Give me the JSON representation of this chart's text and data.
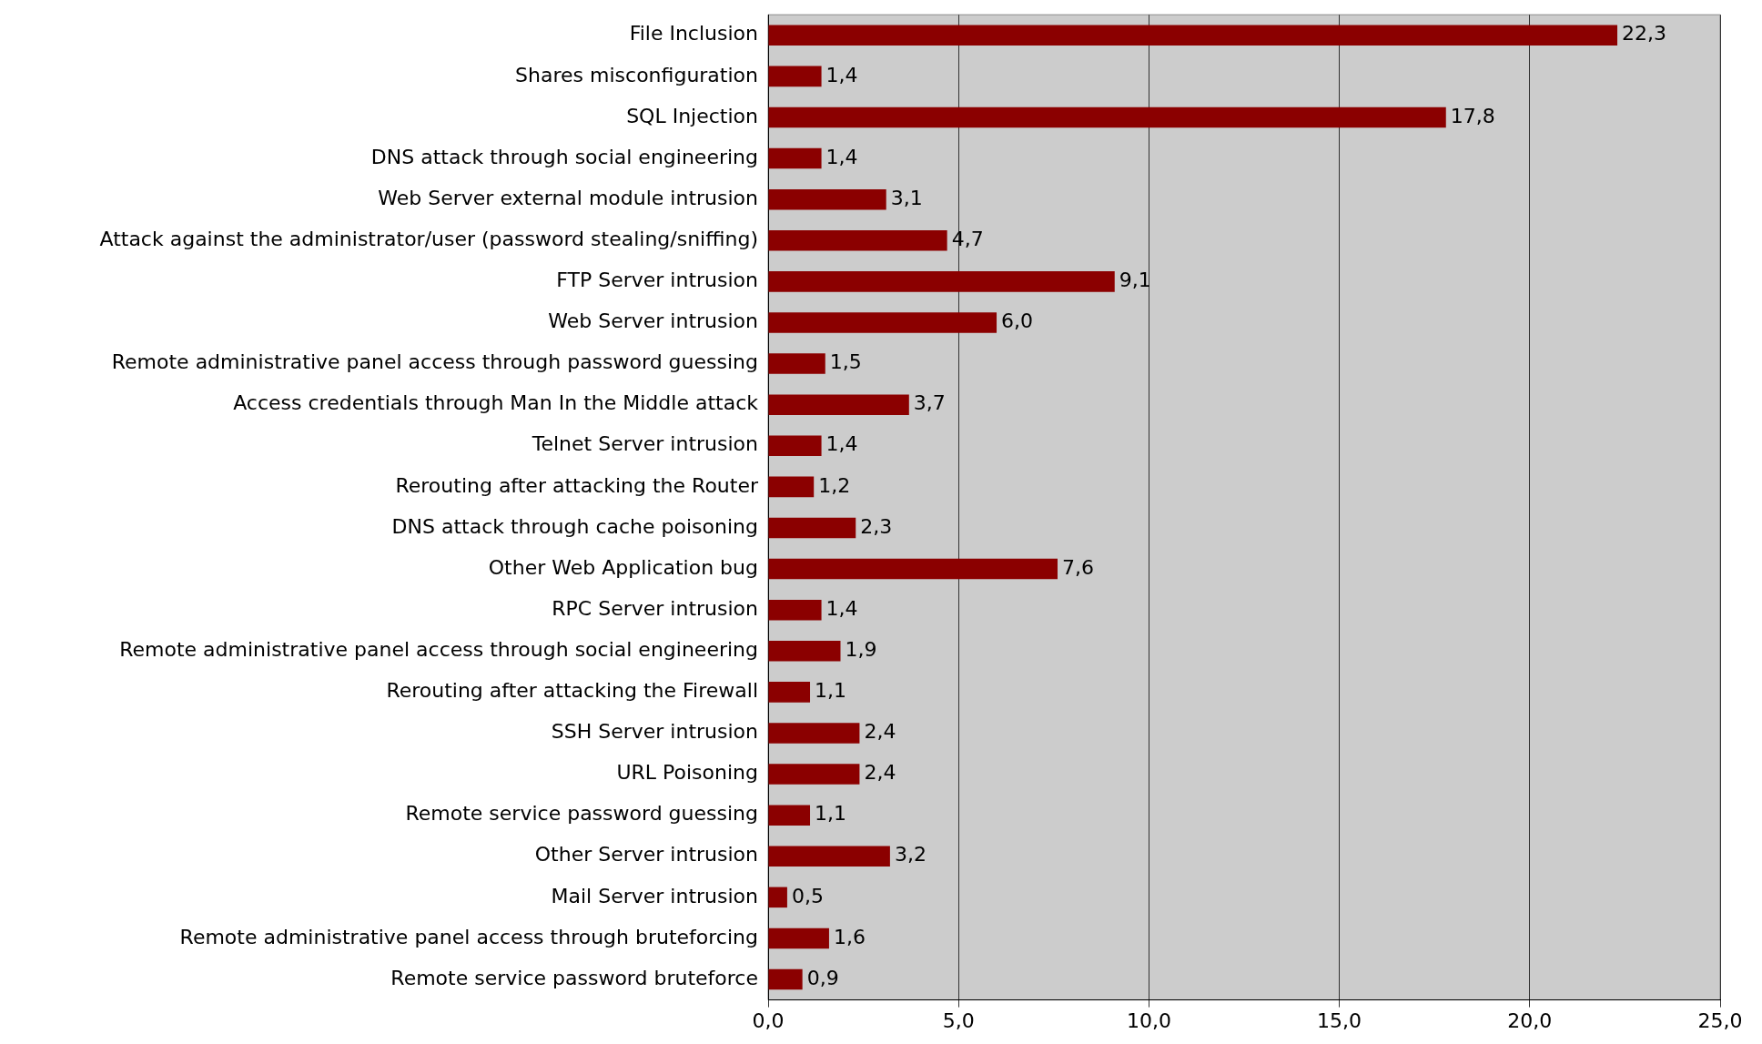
{
  "chart_data": {
    "type": "bar",
    "orientation": "horizontal",
    "categories": [
      "File Inclusion",
      "Shares misconfiguration",
      "SQL Injection",
      "DNS attack through social engineering",
      "Web Server external module intrusion",
      "Attack against the administrator/user (password stealing/sniffing)",
      "FTP Server intrusion",
      "Web Server intrusion",
      "Remote administrative panel access through password guessing",
      "Access credentials through Man In the Middle attack",
      "Telnet Server intrusion",
      "Rerouting after attacking the Router",
      "DNS attack through cache poisoning",
      "Other Web Application bug",
      "RPC Server intrusion",
      "Remote administrative panel access through social engineering",
      "Rerouting after attacking the Firewall",
      "SSH Server intrusion",
      "URL Poisoning",
      "Remote service password guessing",
      "Other Server intrusion",
      "Mail Server intrusion",
      "Remote administrative panel access through bruteforcing",
      "Remote service password bruteforce"
    ],
    "values": [
      22.3,
      1.4,
      17.8,
      1.4,
      3.1,
      4.7,
      9.1,
      6.0,
      1.5,
      3.7,
      1.4,
      1.2,
      2.3,
      7.6,
      1.4,
      1.9,
      1.1,
      2.4,
      2.4,
      1.1,
      3.2,
      0.5,
      1.6,
      0.9
    ],
    "value_labels": [
      "22,3",
      "1,4",
      "17,8",
      "1,4",
      "3,1",
      "4,7",
      "9,1",
      "6,0",
      "1,5",
      "3,7",
      "1,4",
      "1,2",
      "2,3",
      "7,6",
      "1,4",
      "1,9",
      "1,1",
      "2,4",
      "2,4",
      "1,1",
      "3,2",
      "0,5",
      "1,6",
      "0,9"
    ],
    "color": "#8b0000",
    "xlim": [
      0,
      25
    ],
    "xticks": [
      {
        "value": 0,
        "label": "0,0"
      },
      {
        "value": 5,
        "label": "5,0"
      },
      {
        "value": 10,
        "label": "10,0"
      },
      {
        "value": 15,
        "label": "15,0"
      },
      {
        "value": 20,
        "label": "20,0"
      },
      {
        "value": 25,
        "label": "25,0"
      }
    ],
    "grid": "x",
    "legend": false
  }
}
